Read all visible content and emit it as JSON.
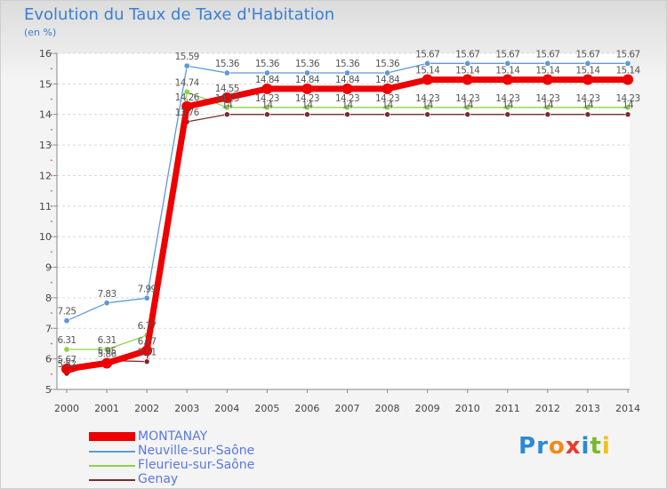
{
  "title": "Evolution du Taux de Taxe d'Habitation",
  "unit_label": "(en %)",
  "logo_letters": [
    "P",
    "r",
    "o",
    "x",
    "i",
    "t",
    "i"
  ],
  "chart_data": {
    "type": "line",
    "title": "Evolution du Taux de Taxe d'Habitation",
    "ylabel": "(en %)",
    "xlabel": "",
    "ylim": [
      5,
      16
    ],
    "yticks": [
      "5",
      "6",
      "7",
      "8",
      "9",
      "10",
      "11",
      "12",
      "13",
      "14",
      "15",
      "16"
    ],
    "x": [
      "2000",
      "2001",
      "2002",
      "2003",
      "2004",
      "2005",
      "2006",
      "2007",
      "2008",
      "2009",
      "2010",
      "2011",
      "2012",
      "2013",
      "2014"
    ],
    "grid": "horizontal dashed",
    "legend_position": "bottom-left",
    "series": [
      {
        "name": "MONTANAY",
        "color": "#ee0000",
        "values": [
          5.67,
          5.86,
          6.27,
          14.26,
          14.55,
          14.84,
          14.84,
          14.84,
          14.84,
          15.14,
          15.14,
          15.14,
          15.14,
          15.14,
          15.14
        ],
        "labels": [
          "5.67",
          "5.86",
          "6.27",
          "14.26",
          "14.55",
          "14.84",
          "14.84",
          "14.84",
          "14.84",
          "15.14",
          "15.14",
          "15.14",
          "15.14",
          "15.14",
          "15.14"
        ]
      },
      {
        "name": "Neuville-sur-Saône",
        "color": "#5b9bd5",
        "values": [
          7.25,
          7.83,
          7.99,
          15.59,
          15.36,
          15.36,
          15.36,
          15.36,
          15.36,
          15.67,
          15.67,
          15.67,
          15.67,
          15.67,
          15.67
        ],
        "labels": [
          "7.25",
          "7.83",
          "7.99",
          "15.59",
          "15.36",
          "15.36",
          "15.36",
          "15.36",
          "15.36",
          "15.67",
          "15.67",
          "15.67",
          "15.67",
          "15.67",
          "15.67"
        ]
      },
      {
        "name": "Fleurieu-sur-Saône",
        "color": "#8bd34a",
        "values": [
          6.31,
          6.31,
          6.77,
          14.74,
          14.23,
          14.23,
          14.23,
          14.23,
          14.23,
          14.23,
          14.23,
          14.23,
          14.23,
          14.23,
          14.23
        ],
        "labels": [
          "6.31",
          "6.31",
          "6.77",
          "14.74",
          "14.23",
          "14.23",
          "14.23",
          "14.23",
          "14.23",
          "14.23",
          "14.23",
          "14.23",
          "14.23",
          "14.23",
          "14.23"
        ]
      },
      {
        "name": "Genay",
        "color": "#7b2b2b",
        "values": [
          5.52,
          5.95,
          5.91,
          13.76,
          14,
          14,
          14,
          14,
          14,
          14,
          14,
          14,
          14,
          14,
          14
        ],
        "labels": [
          "5.52",
          "5.95",
          "5.91",
          "13.76",
          "14",
          "14",
          "14",
          "14",
          "14",
          "14",
          "14",
          "14",
          "14",
          "14",
          "14"
        ]
      }
    ]
  }
}
